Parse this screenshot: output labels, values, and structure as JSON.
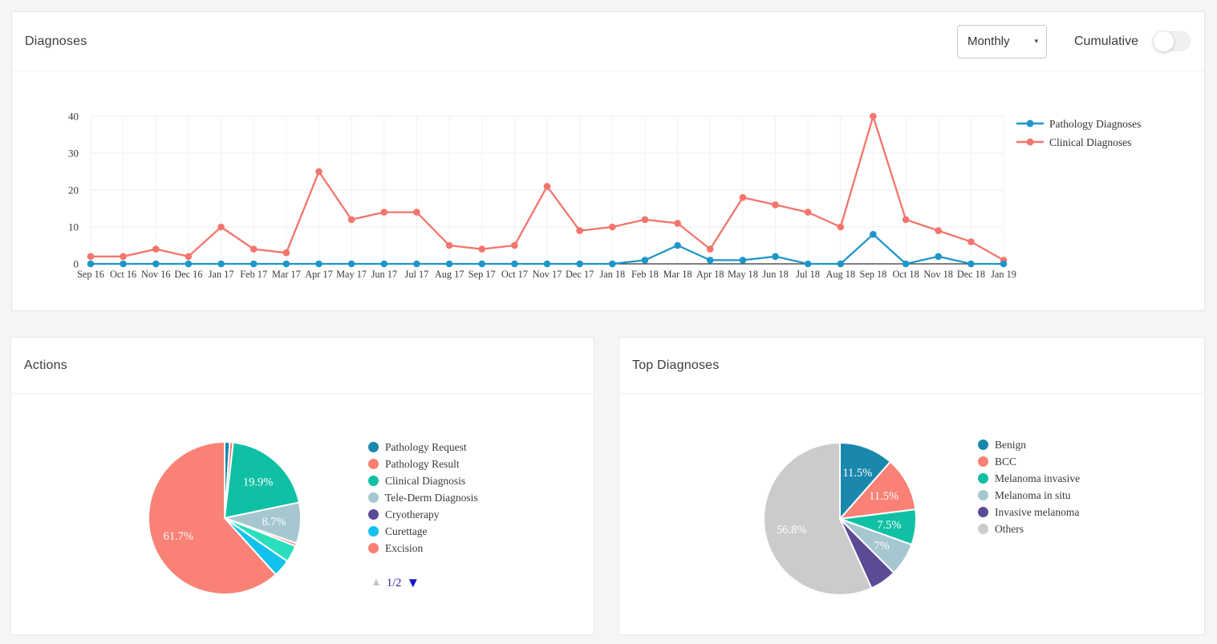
{
  "diagnoses_panel": {
    "title": "Diagnoses",
    "interval_selected": "Monthly",
    "chevron_icon": "▾",
    "cumulative_label": "Cumulative",
    "cumulative_on": false
  },
  "actions_panel": {
    "title": "Actions",
    "pagination": {
      "up_icon": "▲",
      "current": "1/2",
      "down_icon": "▼"
    }
  },
  "top_diagnoses_panel": {
    "title": "Top Diagnoses"
  },
  "chart_data": [
    {
      "type": "line",
      "panel": "Diagnoses",
      "x": [
        "Sep 16",
        "Oct 16",
        "Nov 16",
        "Dec 16",
        "Jan 17",
        "Feb 17",
        "Mar 17",
        "Apr 17",
        "May 17",
        "Jun 17",
        "Jul 17",
        "Aug 17",
        "Sep 17",
        "Oct 17",
        "Nov 17",
        "Dec 17",
        "Jan 18",
        "Feb 18",
        "Mar 18",
        "Apr 18",
        "May 18",
        "Jun 18",
        "Jul 18",
        "Aug 18",
        "Sep 18",
        "Oct 18",
        "Nov 18",
        "Dec 18",
        "Jan 19"
      ],
      "series": [
        {
          "name": "Pathology Diagnoses",
          "color": "#1e96c8",
          "values": [
            0,
            0,
            0,
            0,
            0,
            0,
            0,
            0,
            0,
            0,
            0,
            0,
            0,
            0,
            0,
            0,
            0,
            1,
            5,
            1,
            1,
            2,
            0,
            0,
            8,
            0,
            2,
            0,
            0
          ]
        },
        {
          "name": "Clinical Diagnoses",
          "color": "#f4756c",
          "values": [
            2,
            2,
            4,
            2,
            10,
            4,
            3,
            25,
            12,
            14,
            14,
            5,
            4,
            5,
            21,
            9,
            10,
            12,
            11,
            4,
            18,
            16,
            14,
            10,
            40,
            12,
            9,
            6,
            1
          ]
        }
      ],
      "ylim": [
        0,
        40
      ],
      "yticks": [
        0,
        10,
        20,
        30,
        40
      ],
      "grid": true,
      "legend_position": "right"
    },
    {
      "type": "pie",
      "panel": "Actions",
      "legend": [
        {
          "label": "Pathology Request",
          "color": "#1a87ad"
        },
        {
          "label": "Pathology Result",
          "color": "#f98175"
        },
        {
          "label": "Clinical Diagnosis",
          "color": "#10c0a5"
        },
        {
          "label": "Tele-Derm Diagnosis",
          "color": "#a6c7cf"
        },
        {
          "label": "Cryotherapy",
          "color": "#5c4a96"
        },
        {
          "label": "Curettage",
          "color": "#12c1ec"
        },
        {
          "label": "Excision",
          "color": "#f98175"
        }
      ],
      "slices": [
        {
          "label": "Pathology Request",
          "value": 1.1,
          "color": "#1a87ad",
          "pct_label": ""
        },
        {
          "label": "",
          "value": 0.7,
          "color": "#f4756c",
          "pct_label": ""
        },
        {
          "label": "Clinical Diagnosis",
          "value": 19.9,
          "color": "#10c0a5",
          "pct_label": "19.9%"
        },
        {
          "label": "Tele-Derm Diagnosis",
          "value": 8.7,
          "color": "#a6c7cf",
          "pct_label": "8.7%"
        },
        {
          "label": "",
          "value": 0.6,
          "color": "#f4756c",
          "pct_label": ""
        },
        {
          "label": "",
          "value": 3.6,
          "color": "#2adfbd",
          "pct_label": ""
        },
        {
          "label": "Curettage",
          "value": 3.7,
          "color": "#12c1ec",
          "pct_label": ""
        },
        {
          "label": "Pathology Result",
          "value": 61.7,
          "color": "#f98175",
          "pct_label": "61.7%"
        }
      ]
    },
    {
      "type": "pie",
      "panel": "Top Diagnoses",
      "legend": [
        {
          "label": "Benign",
          "color": "#1a87ad"
        },
        {
          "label": "BCC",
          "color": "#f98175"
        },
        {
          "label": "Melanoma invasive",
          "color": "#10c0a5"
        },
        {
          "label": "Melanoma in situ",
          "color": "#a6c7cf"
        },
        {
          "label": "Invasive melanoma",
          "color": "#5c4a96"
        },
        {
          "label": "Others",
          "color": "#cbcbcb"
        }
      ],
      "slices": [
        {
          "label": "Benign",
          "value": 11.5,
          "color": "#1a87ad",
          "pct_label": "11.5%"
        },
        {
          "label": "BCC",
          "value": 11.5,
          "color": "#f98175",
          "pct_label": "11.5%"
        },
        {
          "label": "Melanoma invasive",
          "value": 7.5,
          "color": "#10c0a5",
          "pct_label": "7.5%"
        },
        {
          "label": "Melanoma in situ",
          "value": 7.0,
          "color": "#a6c7cf",
          "pct_label": "7%"
        },
        {
          "label": "Invasive melanoma",
          "value": 5.7,
          "color": "#5c4a96",
          "pct_label": ""
        },
        {
          "label": "Others",
          "value": 56.8,
          "color": "#cbcbcb",
          "pct_label": "56.8%"
        }
      ]
    }
  ]
}
